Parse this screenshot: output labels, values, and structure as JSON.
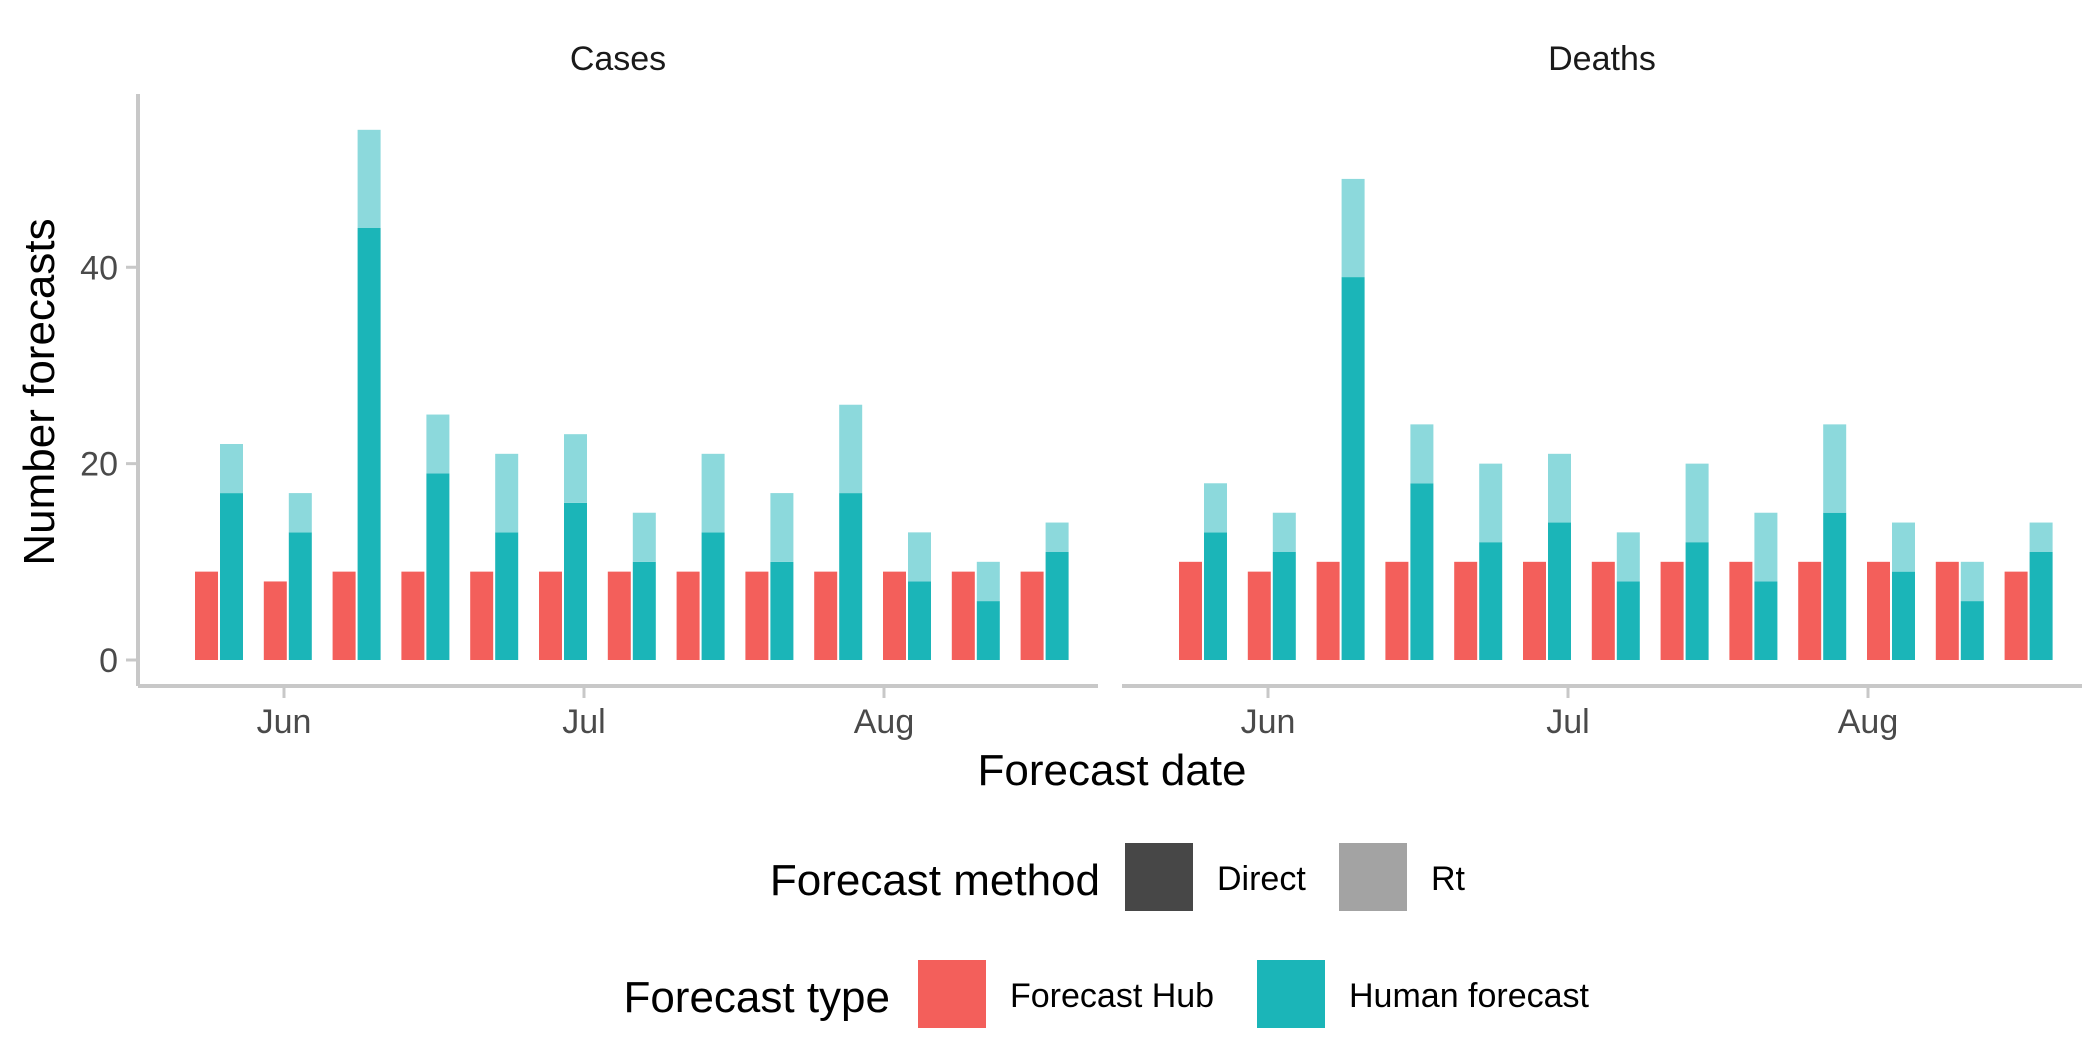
{
  "chart_data": {
    "type": "bar",
    "ylabel": "Number forecasts",
    "xlabel": "Forecast date",
    "ylim": [
      0,
      55
    ],
    "yticks": [
      0,
      20,
      40
    ],
    "ytick_labels": [
      "0",
      "20",
      "40"
    ],
    "xtick_labels": [
      "Jun",
      "Jul",
      "Aug"
    ],
    "grid": false,
    "legend_position": "bottom",
    "colors": {
      "forecast_hub": "#F35F5B",
      "human_direct": "#1BB5B8",
      "human_rt": "#8CD9DC",
      "legend_direct": "#474747",
      "legend_rt": "#A3A3A3"
    },
    "legends": {
      "method": {
        "title": "Forecast method",
        "items": [
          {
            "label": "Direct",
            "color": "#474747"
          },
          {
            "label": "Rt",
            "color": "#A3A3A3"
          }
        ]
      },
      "type": {
        "title": "Forecast type",
        "items": [
          {
            "label": "Forecast Hub",
            "color": "#F35F5B"
          },
          {
            "label": "Human forecast",
            "color": "#1BB5B8"
          }
        ]
      }
    },
    "panels": [
      {
        "title": "Cases",
        "series": [
          {
            "name": "Forecast Hub",
            "values": [
              9,
              8,
              9,
              9,
              9,
              9,
              9,
              9,
              9,
              9,
              9,
              9,
              9
            ]
          },
          {
            "name": "Human forecast (Direct)",
            "values": [
              17,
              13,
              44,
              19,
              13,
              16,
              10,
              13,
              10,
              17,
              8,
              6,
              11
            ]
          },
          {
            "name": "Human forecast (Rt)",
            "values": [
              5,
              4,
              10,
              6,
              8,
              7,
              5,
              8,
              7,
              9,
              5,
              4,
              3
            ]
          }
        ]
      },
      {
        "title": "Deaths",
        "series": [
          {
            "name": "Forecast Hub",
            "values": [
              10,
              9,
              10,
              10,
              10,
              10,
              10,
              10,
              10,
              10,
              10,
              10,
              9
            ]
          },
          {
            "name": "Human forecast (Direct)",
            "values": [
              13,
              11,
              39,
              18,
              12,
              14,
              8,
              12,
              8,
              15,
              9,
              6,
              11
            ]
          },
          {
            "name": "Human forecast (Rt)",
            "values": [
              5,
              4,
              10,
              6,
              8,
              7,
              5,
              8,
              7,
              9,
              5,
              4,
              3
            ]
          }
        ]
      }
    ]
  }
}
